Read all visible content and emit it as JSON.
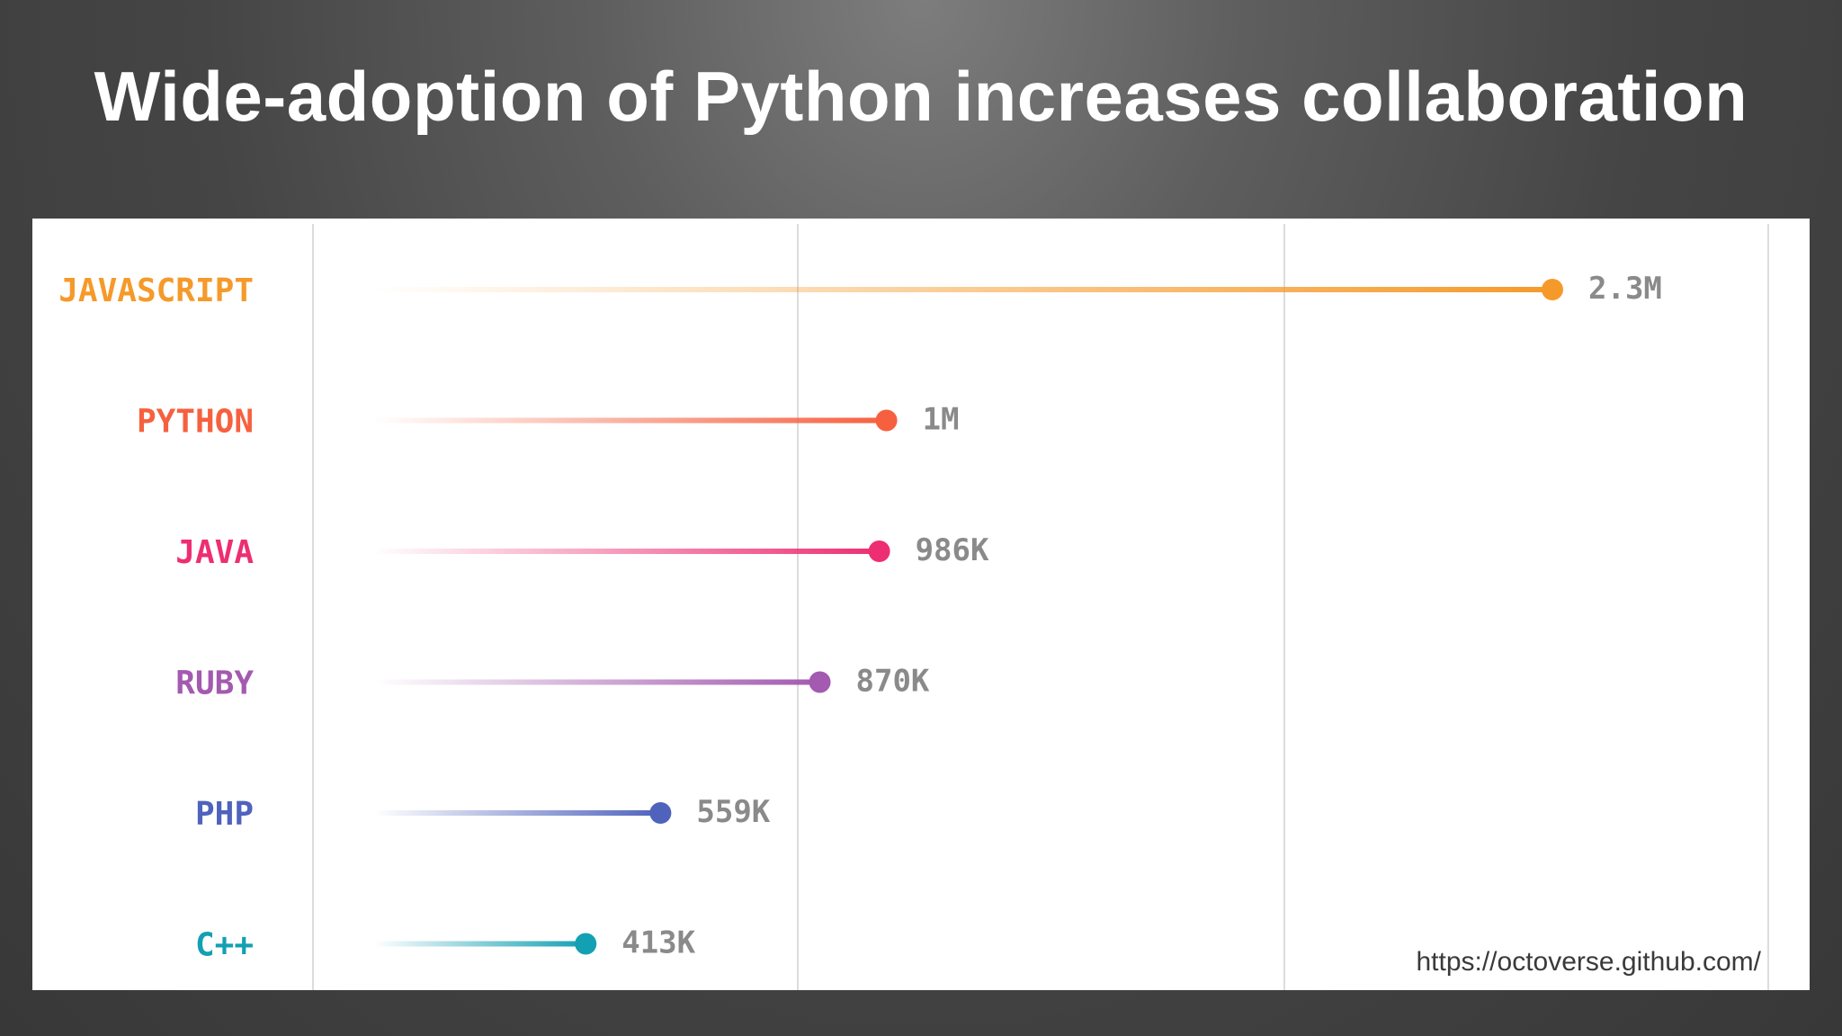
{
  "title": "Wide-adoption of Python increases collaboration",
  "source_url": "https://octoverse.github.com/",
  "chart_data": {
    "type": "bar",
    "orientation": "horizontal",
    "style": "lollipop",
    "grid": true,
    "categories": [
      "JAVASCRIPT",
      "PYTHON",
      "JAVA",
      "RUBY",
      "PHP",
      "C++"
    ],
    "values": [
      2300000,
      1000000,
      986000,
      870000,
      559000,
      413000
    ],
    "value_labels": [
      "2.3M",
      "1M",
      "986K",
      "870K",
      "559K",
      "413K"
    ],
    "colors": [
      "#f59a2a",
      "#f6603f",
      "#ee2e72",
      "#a35ab0",
      "#4f63bd",
      "#13a0b2"
    ]
  }
}
